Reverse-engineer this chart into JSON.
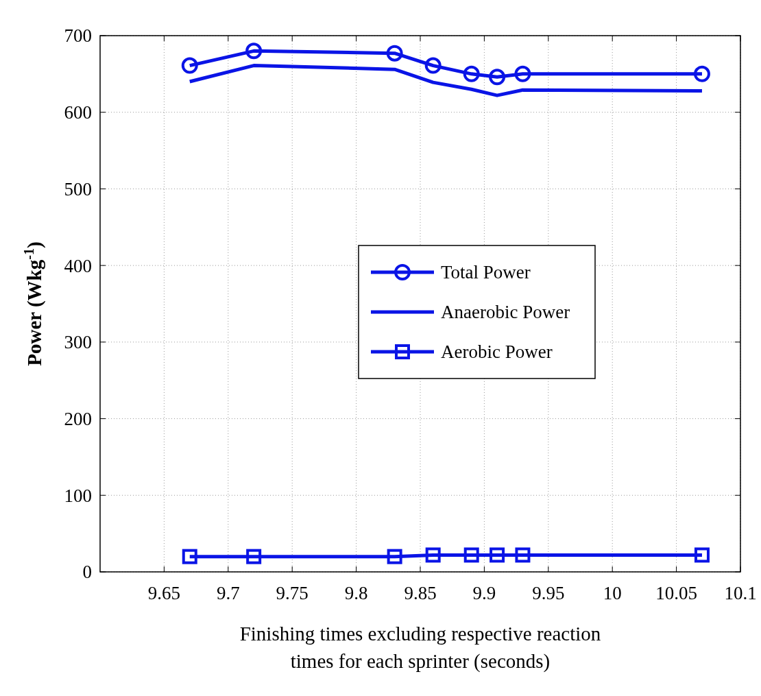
{
  "chart_data": {
    "type": "line",
    "xlabel": "Finishing times excluding respective reaction times for each sprinter (seconds)",
    "ylabel": "Power (Wkg$^{-1}$)",
    "x": [
      9.67,
      9.72,
      9.83,
      9.86,
      9.89,
      9.91,
      9.93,
      10.07
    ],
    "series": [
      {
        "name": "Total Power",
        "color": "#0a14e6",
        "marker": "circle",
        "values": [
          661,
          680,
          677,
          661,
          650,
          646,
          650,
          650
        ]
      },
      {
        "name": "Anaerobic Power",
        "color": "#0a14e6",
        "marker": "none",
        "values": [
          640,
          661,
          656,
          639,
          630,
          622,
          629,
          628
        ]
      },
      {
        "name": "Aerobic Power",
        "color": "#0a14e6",
        "marker": "square",
        "values": [
          20,
          20,
          20,
          22,
          22,
          22,
          22,
          22
        ]
      }
    ],
    "xlim": [
      9.6,
      10.1
    ],
    "xticks": [
      9.65,
      9.7,
      9.75,
      9.8,
      9.85,
      9.9,
      9.95,
      10,
      10.05,
      10.1
    ],
    "ylim": [
      0,
      700
    ],
    "yticks": [
      0,
      100,
      200,
      300,
      400,
      500,
      600,
      700
    ],
    "grid": true,
    "legend": "right"
  }
}
